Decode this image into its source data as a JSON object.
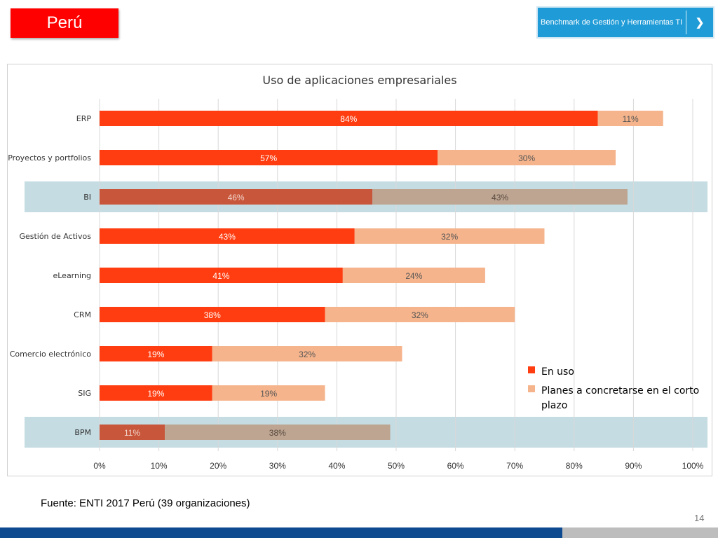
{
  "header": {
    "country": "Perú",
    "benchmark_link": "Benchmark de Gestión y Herramientas TI",
    "benchmark_icon": "chevron-right-icon"
  },
  "colors": {
    "in_use": "#ff3d10",
    "planned": "#f5b48c",
    "in_use_highlight": "#c8563a",
    "planned_highlight": "#bda592",
    "highlight_band": "#c5dce2"
  },
  "chart_data": {
    "type": "bar",
    "orientation": "horizontal",
    "stacked": true,
    "title": "Uso de aplicaciones empresariales",
    "categories": [
      "ERP",
      "Proyectos y portfolios",
      "BI",
      "Gestión de Activos",
      "eLearning",
      "CRM",
      "Comercio electrónico",
      "SIG",
      "BPM"
    ],
    "highlighted": [
      "BI",
      "BPM"
    ],
    "series": [
      {
        "name": "En uso",
        "values": [
          84,
          57,
          46,
          43,
          41,
          38,
          19,
          19,
          11
        ],
        "labels": [
          "84%",
          "57%",
          "46%",
          "43%",
          "41%",
          "38%",
          "19%",
          "19%",
          "11%"
        ]
      },
      {
        "name": "Planes a concretarse en el corto plazo",
        "values": [
          11,
          30,
          43,
          32,
          24,
          32,
          32,
          19,
          38
        ],
        "labels": [
          "11%",
          "30%",
          "43%",
          "32%",
          "24%",
          "32%",
          "32%",
          "19%",
          "38%"
        ]
      }
    ],
    "xlim": [
      0,
      100
    ],
    "xticks": [
      "0%",
      "10%",
      "20%",
      "30%",
      "40%",
      "50%",
      "60%",
      "70%",
      "80%",
      "90%",
      "100%"
    ],
    "grid": true,
    "legend_position": "bottom-right"
  },
  "footer": {
    "source": "Fuente: ENTI 2017 Perú (39 organizaciones)",
    "page_number": "14"
  }
}
